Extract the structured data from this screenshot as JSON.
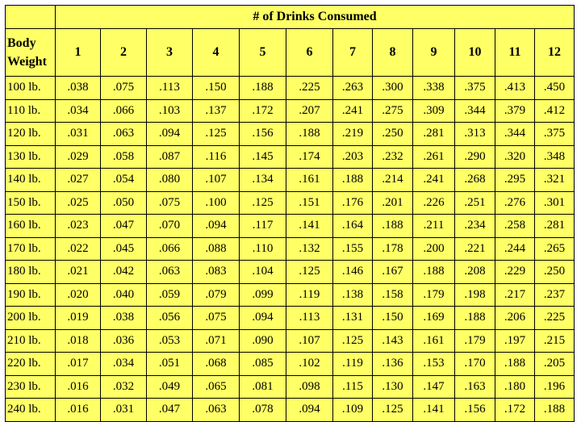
{
  "title": "# of Drinks Consumed",
  "row_header": "Body Weight",
  "columns": [
    "1",
    "2",
    "3",
    "4",
    "5",
    "6",
    "7",
    "8",
    "9",
    "10",
    "11",
    "12"
  ],
  "rows": [
    {
      "weight": "100 lb.",
      "values": [
        ".038",
        ".075",
        ".113",
        ".150",
        ".188",
        ".225",
        ".263",
        ".300",
        ".338",
        ".375",
        ".413",
        ".450"
      ]
    },
    {
      "weight": "110 lb.",
      "values": [
        ".034",
        ".066",
        ".103",
        ".137",
        ".172",
        ".207",
        ".241",
        ".275",
        ".309",
        ".344",
        ".379",
        ".412"
      ]
    },
    {
      "weight": "120 lb.",
      "values": [
        ".031",
        ".063",
        ".094",
        ".125",
        ".156",
        ".188",
        ".219",
        ".250",
        ".281",
        ".313",
        ".344",
        ".375"
      ]
    },
    {
      "weight": "130 lb.",
      "values": [
        ".029",
        ".058",
        ".087",
        ".116",
        ".145",
        ".174",
        ".203",
        ".232",
        ".261",
        ".290",
        ".320",
        ".348"
      ]
    },
    {
      "weight": "140 lb.",
      "values": [
        ".027",
        ".054",
        ".080",
        ".107",
        ".134",
        ".161",
        ".188",
        ".214",
        ".241",
        ".268",
        ".295",
        ".321"
      ]
    },
    {
      "weight": "150 lb.",
      "values": [
        ".025",
        ".050",
        ".075",
        ".100",
        ".125",
        ".151",
        ".176",
        ".201",
        ".226",
        ".251",
        ".276",
        ".301"
      ]
    },
    {
      "weight": "160 lb.",
      "values": [
        ".023",
        ".047",
        ".070",
        ".094",
        ".117",
        ".141",
        ".164",
        ".188",
        ".211",
        ".234",
        ".258",
        ".281"
      ]
    },
    {
      "weight": "170 lb.",
      "values": [
        ".022",
        ".045",
        ".066",
        ".088",
        ".110",
        ".132",
        ".155",
        ".178",
        ".200",
        ".221",
        ".244",
        ".265"
      ]
    },
    {
      "weight": "180 lb.",
      "values": [
        ".021",
        ".042",
        ".063",
        ".083",
        ".104",
        ".125",
        ".146",
        ".167",
        ".188",
        ".208",
        ".229",
        ".250"
      ]
    },
    {
      "weight": "190 lb.",
      "values": [
        ".020",
        ".040",
        ".059",
        ".079",
        ".099",
        ".119",
        ".138",
        ".158",
        ".179",
        ".198",
        ".217",
        ".237"
      ]
    },
    {
      "weight": "200 lb.",
      "values": [
        ".019",
        ".038",
        ".056",
        ".075",
        ".094",
        ".113",
        ".131",
        ".150",
        ".169",
        ".188",
        ".206",
        ".225"
      ]
    },
    {
      "weight": "210 lb.",
      "values": [
        ".018",
        ".036",
        ".053",
        ".071",
        ".090",
        ".107",
        ".125",
        ".143",
        ".161",
        ".179",
        ".197",
        ".215"
      ]
    },
    {
      "weight": "220 lb.",
      "values": [
        ".017",
        ".034",
        ".051",
        ".068",
        ".085",
        ".102",
        ".119",
        ".136",
        ".153",
        ".170",
        ".188",
        ".205"
      ]
    },
    {
      "weight": "230 lb.",
      "values": [
        ".016",
        ".032",
        ".049",
        ".065",
        ".081",
        ".098",
        ".115",
        ".130",
        ".147",
        ".163",
        ".180",
        ".196"
      ]
    },
    {
      "weight": "240 lb.",
      "values": [
        ".016",
        ".031",
        ".047",
        ".063",
        ".078",
        ".094",
        ".109",
        ".125",
        ".141",
        ".156",
        ".172",
        ".188"
      ]
    }
  ],
  "colors": {
    "background": "#ffff66",
    "border": "#000000"
  }
}
